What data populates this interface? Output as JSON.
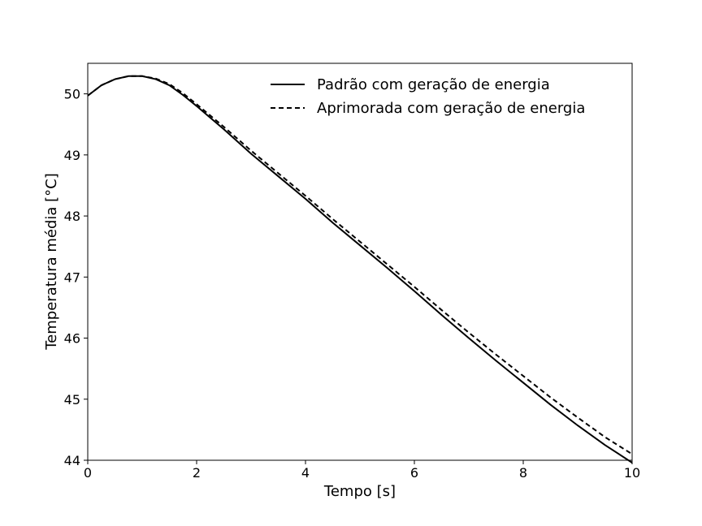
{
  "chart_data": {
    "type": "line",
    "xlabel": "Tempo [s]",
    "ylabel": "Temperatura média [°C]",
    "xlim": [
      0,
      10
    ],
    "ylim": [
      44,
      50.5
    ],
    "xticks": [
      "0",
      "2",
      "4",
      "6",
      "8",
      "10"
    ],
    "yticks": [
      "44",
      "45",
      "46",
      "47",
      "48",
      "49",
      "50"
    ],
    "grid": false,
    "legend_position": "top-right",
    "series": [
      {
        "name": "Padrão com geração de energia",
        "style": "solid",
        "color": "#000000",
        "x": [
          0,
          0.25,
          0.5,
          0.75,
          1.0,
          1.25,
          1.5,
          1.75,
          2.0,
          2.5,
          3.0,
          3.5,
          4.0,
          4.5,
          5.0,
          5.5,
          6.0,
          6.5,
          7.0,
          7.5,
          8.0,
          8.5,
          9.0,
          9.5,
          10.0
        ],
        "y": [
          49.97,
          50.14,
          50.24,
          50.29,
          50.29,
          50.24,
          50.14,
          49.98,
          49.8,
          49.42,
          49.02,
          48.65,
          48.28,
          47.89,
          47.52,
          47.15,
          46.77,
          46.38,
          46.0,
          45.63,
          45.27,
          44.91,
          44.57,
          44.25,
          43.96
        ]
      },
      {
        "name": "Aprimorada com geração de energia",
        "style": "dashed",
        "color": "#000000",
        "x": [
          0,
          0.25,
          0.5,
          0.75,
          1.0,
          1.25,
          1.5,
          1.75,
          2.0,
          2.5,
          3.0,
          3.5,
          4.0,
          4.5,
          5.0,
          5.5,
          6.0,
          6.5,
          7.0,
          7.5,
          8.0,
          8.5,
          9.0,
          9.5,
          10.0
        ],
        "y": [
          49.97,
          50.14,
          50.24,
          50.29,
          50.29,
          50.25,
          50.16,
          50.01,
          49.83,
          49.46,
          49.07,
          48.7,
          48.33,
          47.95,
          47.58,
          47.21,
          46.84,
          46.46,
          46.09,
          45.73,
          45.38,
          45.03,
          44.7,
          44.38,
          44.1
        ]
      }
    ]
  }
}
